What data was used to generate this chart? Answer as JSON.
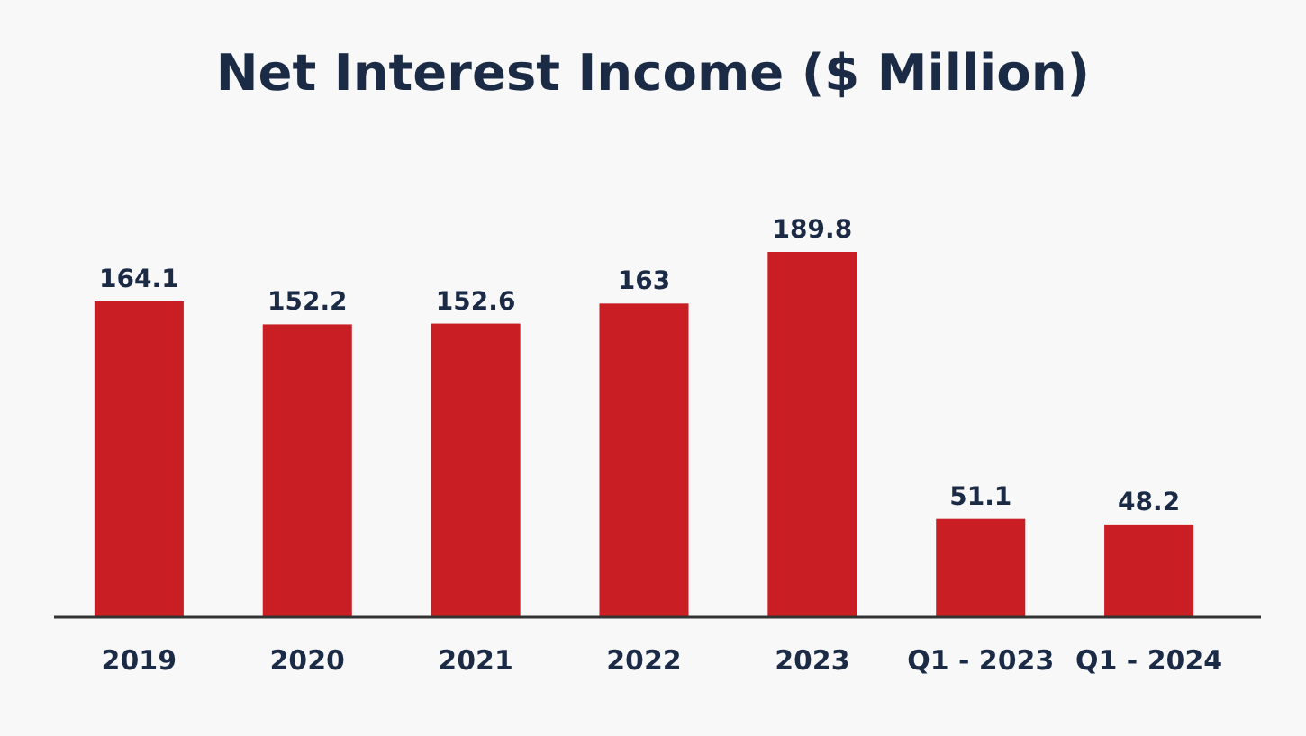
{
  "chart_data": {
    "type": "bar",
    "title": "Net Interest Income ($ Million)",
    "categories": [
      "2019",
      "2020",
      "2021",
      "2022",
      "2023",
      "Q1 - 2023",
      "Q1 - 2024"
    ],
    "values": [
      164.1,
      152.2,
      152.6,
      163,
      189.8,
      51.1,
      48.2
    ],
    "color": "#c81e24",
    "data_labels": true,
    "value_labels": [
      "164.1",
      "152.2",
      "152.6",
      "163",
      "189.8",
      "51.1",
      "48.2"
    ]
  }
}
